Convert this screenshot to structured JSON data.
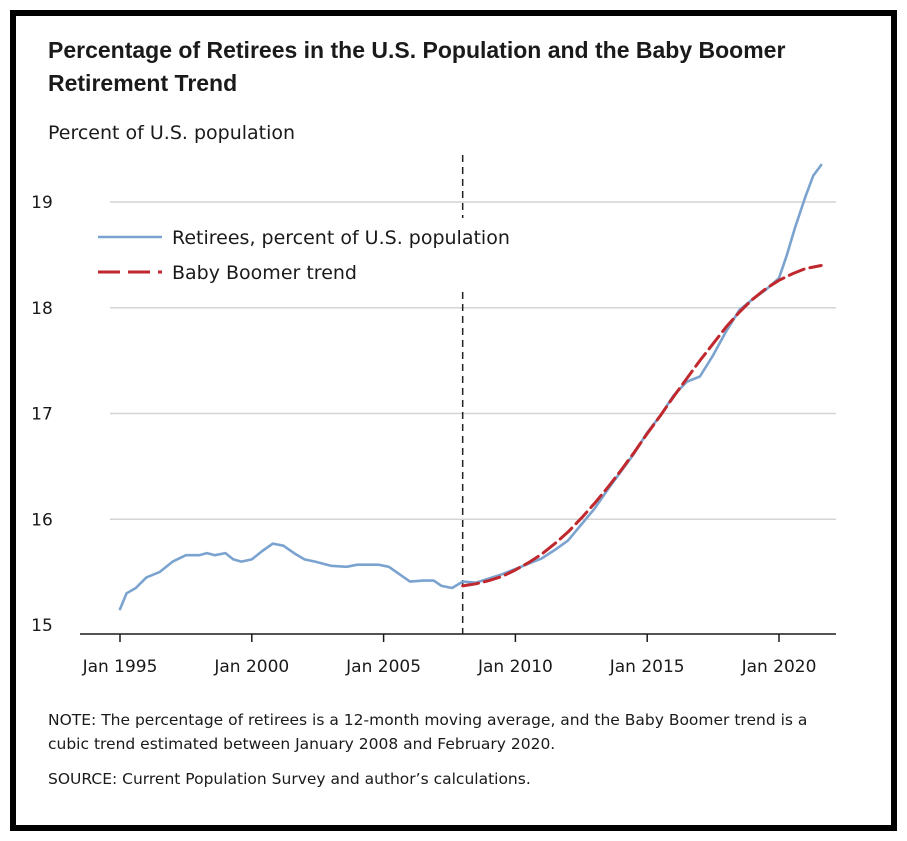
{
  "title": "Percentage of Retirees in the U.S. Population and the Baby Boomer Retirement Trend",
  "note": "NOTE: The percentage of retirees is a 12-month moving average, and the Baby Boomer trend is a cubic trend estimated between January 2008 and February 2020.",
  "source": "SOURCE: Current Population Survey and author’s calculations.",
  "colors": {
    "retirees": "#7ba3cf",
    "trend": "#c0282d",
    "grid": "#d4d4d4",
    "axis": "#1a1a1a",
    "vline": "#222222"
  },
  "chart_data": {
    "type": "line",
    "ylabel": "Percent of U.S. population",
    "xlabel": "",
    "ylim": [
      15,
      19.5
    ],
    "xlim": [
      1994.0,
      2022.0
    ],
    "yticks": [
      15,
      16,
      17,
      18,
      19
    ],
    "xticks": [
      {
        "label": "Jan 1995",
        "value": 1995.0
      },
      {
        "label": "Jan 2000",
        "value": 2000.0
      },
      {
        "label": "Jan 2005",
        "value": 2005.0
      },
      {
        "label": "Jan 2010",
        "value": 2010.0
      },
      {
        "label": "Jan 2015",
        "value": 2015.0
      },
      {
        "label": "Jan 2020",
        "value": 2020.0
      }
    ],
    "grid": true,
    "legend_position": "top-left",
    "vertical_marker": 2008.0,
    "series": [
      {
        "name": "Retirees, percent of U.S. population",
        "style": "solid",
        "x": [
          1995.0,
          1995.25,
          1995.6,
          1996.0,
          1996.5,
          1997.0,
          1997.5,
          1998.0,
          1998.3,
          1998.6,
          1999.0,
          1999.3,
          1999.6,
          2000.0,
          2000.4,
          2000.8,
          2001.2,
          2001.6,
          2002.0,
          2002.4,
          2003.0,
          2003.6,
          2004.0,
          2004.4,
          2004.8,
          2005.2,
          2005.6,
          2006.0,
          2006.5,
          2006.9,
          2007.2,
          2007.6,
          2008.0,
          2008.5,
          2009.0,
          2009.5,
          2010.0,
          2010.5,
          2011.0,
          2011.5,
          2012.0,
          2012.5,
          2013.0,
          2013.5,
          2014.0,
          2014.5,
          2015.0,
          2015.5,
          2016.0,
          2016.5,
          2017.0,
          2017.5,
          2018.0,
          2018.5,
          2019.0,
          2019.5,
          2020.0,
          2020.3,
          2020.6,
          2021.0,
          2021.3,
          2021.6
        ],
        "values": [
          15.15,
          15.3,
          15.35,
          15.45,
          15.5,
          15.6,
          15.66,
          15.66,
          15.68,
          15.66,
          15.68,
          15.62,
          15.6,
          15.62,
          15.7,
          15.77,
          15.75,
          15.68,
          15.62,
          15.6,
          15.56,
          15.55,
          15.57,
          15.57,
          15.57,
          15.55,
          15.48,
          15.41,
          15.42,
          15.42,
          15.37,
          15.35,
          15.41,
          15.4,
          15.44,
          15.48,
          15.53,
          15.58,
          15.63,
          15.71,
          15.8,
          15.95,
          16.1,
          16.28,
          16.45,
          16.62,
          16.82,
          16.98,
          17.17,
          17.3,
          17.35,
          17.55,
          17.78,
          17.98,
          18.08,
          18.17,
          18.28,
          18.5,
          18.75,
          19.05,
          19.25,
          19.35
        ]
      },
      {
        "name": "Baby Boomer trend",
        "style": "dashed",
        "x": [
          2008.0,
          2008.5,
          2009.0,
          2009.5,
          2010.0,
          2010.5,
          2011.0,
          2011.5,
          2012.0,
          2012.5,
          2013.0,
          2013.5,
          2014.0,
          2014.5,
          2015.0,
          2015.5,
          2016.0,
          2016.5,
          2017.0,
          2017.5,
          2018.0,
          2018.5,
          2019.0,
          2019.5,
          2020.0,
          2020.5,
          2021.0,
          2021.6
        ],
        "values": [
          15.37,
          15.39,
          15.42,
          15.46,
          15.52,
          15.59,
          15.67,
          15.77,
          15.88,
          16.01,
          16.15,
          16.3,
          16.46,
          16.63,
          16.81,
          16.98,
          17.16,
          17.33,
          17.5,
          17.66,
          17.82,
          17.96,
          18.08,
          18.18,
          18.26,
          18.32,
          18.37,
          18.4
        ]
      }
    ]
  }
}
